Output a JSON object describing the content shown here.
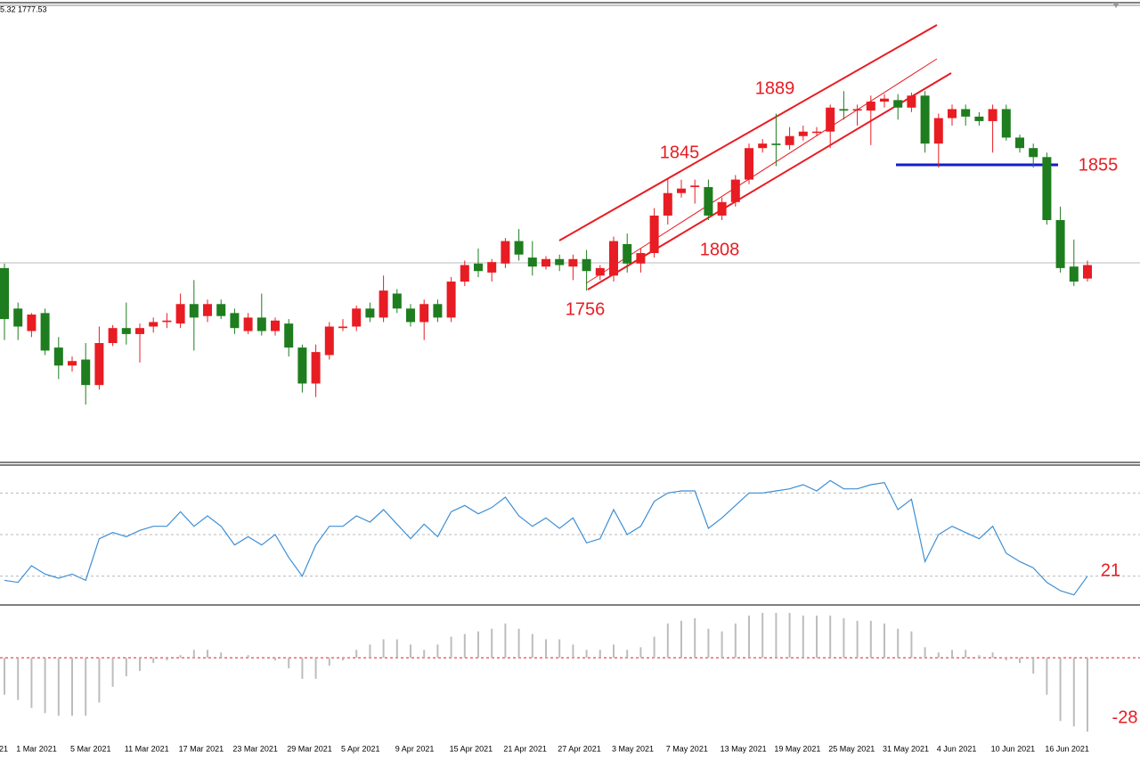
{
  "header": {
    "info": "5.32 1777.53"
  },
  "chart_data": [
    {
      "type": "candlestick",
      "x": [
        null,
        "1 Mar 2021",
        null,
        null,
        null,
        "5 Mar 2021",
        null,
        null,
        null,
        "11 Mar 2021",
        null,
        null,
        null,
        "17 Mar 2021",
        null,
        null,
        null,
        "23 Mar 2021",
        null,
        null,
        null,
        "29 Mar 2021",
        null,
        null,
        null,
        "5 Apr 2021",
        null,
        null,
        null,
        "9 Apr 2021",
        null,
        null,
        null,
        "15 Apr 2021",
        null,
        null,
        null,
        "21 Apr 2021",
        null,
        null,
        null,
        "27 Apr 2021",
        null,
        null,
        null,
        "3 May 2021",
        null,
        null,
        null,
        "7 May 2021",
        null,
        null,
        null,
        "13 May 2021",
        null,
        null,
        null,
        "19 May 2021",
        null,
        null,
        null,
        "25 May 2021",
        null,
        null,
        null,
        "31 May 2021",
        null,
        null,
        null,
        "4 Jun 2021",
        null,
        null,
        null,
        "10 Jun 2021",
        null,
        null,
        null,
        "16 Jun 2021",
        null,
        null,
        null
      ],
      "clipped_label": "21",
      "open": [
        1771,
        1744,
        1729,
        1741,
        1718,
        1706,
        1710,
        1693,
        1721,
        1731,
        1727,
        1732,
        1735,
        1734,
        1747,
        1739,
        1747,
        1741,
        1729,
        1738,
        1729,
        1734,
        1718,
        1694,
        1713,
        1731,
        1732,
        1744,
        1738,
        1754,
        1744,
        1735,
        1747,
        1738,
        1762,
        1774,
        1768,
        1774,
        1789,
        1778,
        1772,
        1777,
        1772,
        1777,
        1766,
        1766,
        1787,
        1774,
        1781,
        1806,
        1821,
        1825,
        1825,
        1806,
        1815,
        1830,
        1851,
        1854,
        1853,
        1859,
        1862,
        1862,
        1877,
        1876,
        1876,
        1882,
        1883,
        1878,
        1886,
        1854,
        1871,
        1877,
        1872,
        1869,
        1877,
        1858,
        1851,
        1845,
        1803,
        1772,
        1764
      ],
      "high": [
        1774,
        1748,
        1741,
        1744,
        1725,
        1712,
        1721,
        1732,
        1733,
        1748,
        1734,
        1738,
        1741,
        1754,
        1763,
        1750,
        1750,
        1744,
        1741,
        1754,
        1738,
        1737,
        1720,
        1720,
        1735,
        1737,
        1746,
        1748,
        1766,
        1757,
        1747,
        1750,
        1750,
        1765,
        1776,
        1784,
        1777,
        1791,
        1797,
        1789,
        1779,
        1780,
        1780,
        1783,
        1773,
        1792,
        1794,
        1784,
        1811,
        1830,
        1830,
        1830,
        1830,
        1818,
        1833,
        1854,
        1857,
        1874,
        1865,
        1866,
        1865,
        1880,
        1889,
        1880,
        1886,
        1887,
        1887,
        1888,
        1889,
        1874,
        1880,
        1880,
        1875,
        1880,
        1880,
        1860,
        1854,
        1848,
        1812,
        1790,
        1776
      ],
      "low": [
        1723,
        1723,
        1725,
        1713,
        1697,
        1702,
        1680,
        1690,
        1719,
        1720,
        1708,
        1728,
        1731,
        1731,
        1716,
        1735,
        1737,
        1727,
        1727,
        1726,
        1726,
        1712,
        1688,
        1685,
        1710,
        1729,
        1729,
        1735,
        1735,
        1741,
        1732,
        1723,
        1735,
        1735,
        1759,
        1765,
        1762,
        1771,
        1776,
        1766,
        1770,
        1769,
        1763,
        1756,
        1763,
        1762,
        1768,
        1768,
        1778,
        1800,
        1818,
        1814,
        1803,
        1803,
        1812,
        1827,
        1848,
        1839,
        1850,
        1856,
        1859,
        1851,
        1870,
        1866,
        1853,
        1878,
        1870,
        1875,
        1848,
        1838,
        1866,
        1866,
        1866,
        1848,
        1856,
        1848,
        1838,
        1800,
        1768,
        1759,
        1762
      ],
      "close": [
        1737,
        1732,
        1740,
        1716,
        1706,
        1709,
        1693,
        1721,
        1731,
        1727,
        1731,
        1735,
        1736,
        1747,
        1738,
        1747,
        1739,
        1731,
        1738,
        1729,
        1736,
        1718,
        1694,
        1715,
        1732,
        1732,
        1744,
        1738,
        1756,
        1744,
        1735,
        1747,
        1738,
        1762,
        1773,
        1769,
        1775,
        1789,
        1780,
        1772,
        1777,
        1773,
        1777,
        1769,
        1771,
        1789,
        1774,
        1781,
        1806,
        1821,
        1824,
        1826,
        1806,
        1815,
        1830,
        1851,
        1854,
        1853,
        1859,
        1862,
        1862,
        1878,
        1876,
        1877,
        1882,
        1884,
        1878,
        1886,
        1854,
        1871,
        1877,
        1872,
        1869,
        1877,
        1858,
        1851,
        1845,
        1803,
        1771,
        1762,
        1773
      ],
      "up_color": "#e81c23",
      "down_color": "#1e7d1e",
      "ylim": [
        1642,
        1945
      ],
      "annotations": [
        1889,
        1845,
        1808,
        1756,
        1855
      ]
    },
    {
      "type": "line",
      "values": [
        28,
        27,
        35,
        31,
        29,
        31,
        28,
        48,
        51,
        49,
        52,
        54,
        54,
        61,
        54,
        59,
        54,
        45,
        49,
        45,
        50,
        39,
        30,
        45,
        54,
        54,
        59,
        56,
        62,
        55,
        48,
        55,
        49,
        61,
        64,
        60,
        63,
        68,
        59,
        54,
        58,
        53,
        58,
        46,
        48,
        62,
        50,
        54,
        66,
        70,
        71,
        71,
        53,
        58,
        64,
        70,
        70,
        71,
        72,
        74,
        71,
        76,
        72,
        72,
        74,
        75,
        62,
        67,
        37,
        50,
        54,
        51,
        48,
        54,
        41,
        37,
        34,
        27,
        23,
        21,
        30
      ],
      "color": "#3d8fd6",
      "ylim": [
        17,
        83
      ],
      "levels": [
        30,
        50,
        70
      ],
      "annotations": [
        21
      ]
    },
    {
      "type": "bar",
      "values": [
        -14,
        -16,
        -19,
        -21,
        -22,
        -22,
        -22,
        -17,
        -11,
        -7,
        -5,
        -2,
        -1,
        1,
        3,
        3,
        2,
        0,
        1,
        0,
        -1,
        -4,
        -8,
        -8,
        -3,
        -1,
        3,
        5,
        7,
        7,
        5,
        3,
        5,
        8,
        9,
        10,
        11,
        13,
        11,
        9,
        7,
        7,
        5,
        3,
        3,
        5,
        3,
        4,
        8,
        13,
        14,
        15,
        11,
        10,
        13,
        16,
        17,
        17,
        17,
        16,
        16,
        16,
        15,
        14,
        14,
        13,
        11,
        10,
        4,
        2,
        3,
        3,
        1,
        2,
        -1,
        -2,
        -6,
        -14,
        -24,
        -26,
        -28
      ],
      "color": "#bdbdbd",
      "ylim": [
        -31,
        19
      ],
      "levels": [
        0
      ],
      "annotations": [
        -28
      ]
    }
  ]
}
